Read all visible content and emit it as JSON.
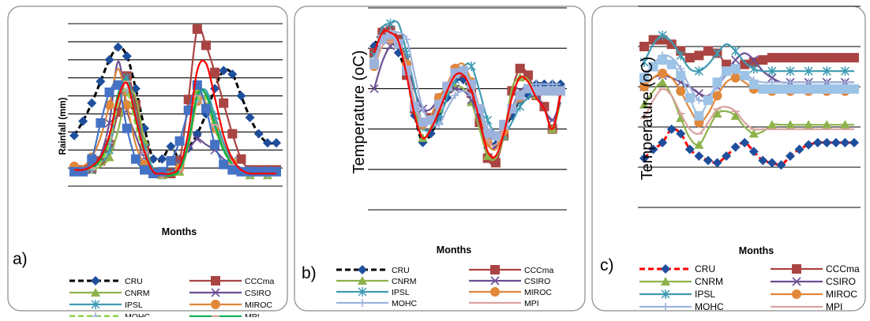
{
  "panels": [
    {
      "letter": "a)",
      "xlabel": "Months",
      "ylabel": "Rainfall (mm)",
      "ylabel_bold": true
    },
    {
      "letter": "b)",
      "xlabel": "Months",
      "ylabel": "Temperature (oC)",
      "ylabel_bold": false
    },
    {
      "letter": "c)",
      "xlabel": "Months",
      "ylabel": "Temperature (oC)",
      "ylabel_bold": false
    }
  ],
  "legend": [
    {
      "name": "CRU",
      "color": "#1f4e9c",
      "marker": "diamond",
      "dash": "dashed"
    },
    {
      "name": "CCCma",
      "color": "#a94442",
      "marker": "square",
      "dash": "solid"
    },
    {
      "name": "CNRM",
      "color": "#8db24a",
      "marker": "triangle",
      "dash": "solid"
    },
    {
      "name": "CSIRO",
      "color": "#6b4f94",
      "marker": "x",
      "dash": "solid"
    },
    {
      "name": "IPSL",
      "color": "#3f9bb3",
      "marker": "asterisk",
      "dash": "solid"
    },
    {
      "name": "MIROC",
      "color": "#e0873a",
      "marker": "circle",
      "dash": "solid"
    },
    {
      "name": "MOHC",
      "color": "#9db3dc",
      "marker": "plus",
      "dash": "solid"
    },
    {
      "name": "MPI",
      "color": "#d9a3a0",
      "marker": "dash",
      "dash": "solid"
    }
  ],
  "legend_overrides": {
    "a": {
      "CRU": {
        "line": "#000000",
        "dash": "dashed"
      },
      "MOHC": {
        "line": "#92d050",
        "dash": "dashed"
      },
      "MPI": {
        "line": "#00b050",
        "dash": "solid"
      }
    },
    "b": {
      "CRU": {
        "line": "#000000",
        "dash": "dashed"
      }
    },
    "c": {
      "CRU": {
        "line": "#ff0000",
        "dash": "dashed"
      }
    }
  },
  "chart_data": [
    {
      "type": "line",
      "panel": "a",
      "x": [
        1,
        2,
        3,
        4,
        5,
        6,
        7,
        8,
        9,
        10,
        11,
        12,
        13,
        14,
        15,
        16,
        17,
        18,
        19,
        20,
        21,
        22,
        23,
        24
      ],
      "xlabel": "Months",
      "ylabel": "Rainfall (mm)",
      "grid": true,
      "ylim": [
        0,
        9
      ],
      "series": [
        {
          "name": "CRU",
          "values": [
            2.8,
            3.6,
            4.6,
            5.8,
            7.0,
            7.7,
            7.2,
            5.4,
            3.2,
            1.5,
            1.5,
            2.2,
            1.5,
            2.1,
            2.9,
            4.0,
            5.4,
            6.4,
            6.2,
            5.0,
            3.8,
            2.9,
            2.4,
            2.4
          ]
        },
        {
          "name": "CCCma",
          "values": [
            0.9,
            0.9,
            1.0,
            1.4,
            2.3,
            4.1,
            6.1,
            4.5,
            2.0,
            0.7,
            0.7,
            0.7,
            1.4,
            4.8,
            8.7,
            7.8,
            6.3,
            4.6,
            2.9,
            1.5,
            0.9,
            0.9,
            0.9,
            0.9
          ]
        },
        {
          "name": "CNRM",
          "values": [
            0.9,
            0.9,
            0.9,
            1.1,
            1.6,
            3.1,
            5.2,
            4.9,
            2.5,
            0.9,
            0.6,
            0.6,
            0.8,
            2.3,
            5.3,
            5.0,
            3.6,
            2.3,
            1.3,
            0.8,
            0.6,
            0.6,
            0.6,
            0.6
          ]
        },
        {
          "name": "CSIRO",
          "values": [
            0.8,
            0.8,
            0.9,
            1.7,
            3.5,
            6.9,
            4.2,
            2.8,
            1.6,
            0.9,
            0.8,
            0.8,
            1.3,
            2.0,
            2.6,
            2.3,
            2.0,
            1.5,
            1.2,
            1.0,
            0.9,
            0.9,
            0.9,
            0.9
          ]
        },
        {
          "name": "IPSL",
          "values": [
            1.0,
            1.0,
            1.1,
            1.3,
            2.0,
            4.8,
            6.0,
            4.0,
            2.1,
            1.0,
            0.8,
            0.8,
            1.1,
            2.5,
            4.9,
            5.3,
            3.9,
            2.4,
            1.4,
            1.0,
            0.8,
            0.8,
            0.8,
            0.8
          ]
        },
        {
          "name": "MIROC",
          "values": [
            1.1,
            1.1,
            1.6,
            2.7,
            4.5,
            6.5,
            4.5,
            2.3,
            1.2,
            0.7,
            0.7,
            0.7,
            1.0,
            2.2,
            4.7,
            4.6,
            3.2,
            2.0,
            1.3,
            0.9,
            0.8,
            0.8,
            0.8,
            0.8
          ]
        },
        {
          "name": "MOHC",
          "values": [
            0.8,
            0.8,
            0.9,
            1.3,
            2.4,
            4.6,
            5.3,
            3.4,
            1.8,
            0.8,
            0.6,
            0.6,
            0.9,
            2.4,
            4.7,
            4.8,
            3.3,
            2.0,
            1.2,
            0.8,
            0.6,
            0.6,
            0.6,
            0.6
          ]
        },
        {
          "name": "MPI",
          "values": [
            0.9,
            0.9,
            1.0,
            1.5,
            2.7,
            5.1,
            5.8,
            3.7,
            1.9,
            0.8,
            0.6,
            0.6,
            0.9,
            2.4,
            5.0,
            5.1,
            3.4,
            2.0,
            1.2,
            0.8,
            0.6,
            0.6,
            0.6,
            0.6
          ]
        },
        {
          "name": "",
          "color": "#4472c4",
          "marker": "square",
          "values": [
            0.8,
            0.8,
            1.5,
            3.5,
            5.2,
            5.6,
            3.2,
            1.5,
            0.9,
            0.7,
            0.8,
            1.4,
            2.5,
            4.2,
            5.6,
            4.3,
            2.3,
            1.2,
            0.9,
            0.8,
            0.8,
            0.8,
            0.8,
            0.8
          ]
        },
        {
          "name": "",
          "color": "#ff0000",
          "marker": "none",
          "values": [
            0.9,
            0.9,
            1.1,
            1.6,
            2.8,
            4.9,
            5.7,
            3.8,
            1.9,
            0.8,
            0.7,
            0.7,
            1.1,
            3.0,
            6.4,
            6.8,
            4.9,
            2.8,
            1.5,
            0.9,
            0.7,
            0.7,
            0.7,
            0.7
          ]
        }
      ]
    },
    {
      "type": "line",
      "panel": "b",
      "x": [
        1,
        2,
        3,
        4,
        5,
        6,
        7,
        8,
        9,
        10,
        11,
        12,
        13,
        14,
        15,
        16,
        17,
        18,
        19,
        20,
        21,
        22,
        23,
        24
      ],
      "xlabel": "Months",
      "ylabel": "Temperature (oC)",
      "grid": true,
      "ylim": [
        0,
        9
      ],
      "series": [
        {
          "name": "CRU",
          "values": [
            7.3,
            8.0,
            7.6,
            7.0,
            6.0,
            4.2,
            3.0,
            3.4,
            4.1,
            5.0,
            5.8,
            5.8,
            5.2,
            4.2,
            3.2,
            2.9,
            3.6,
            4.2,
            4.9,
            5.1,
            5.6,
            5.6,
            5.6,
            5.6
          ]
        },
        {
          "name": "CCCma",
          "values": [
            7.0,
            7.9,
            8.0,
            7.6,
            6.0,
            4.5,
            3.9,
            4.1,
            4.8,
            5.4,
            6.2,
            6.1,
            5.2,
            3.9,
            2.3,
            2.1,
            3.3,
            5.3,
            6.3,
            6.0,
            5.1,
            4.6,
            3.6,
            5.3
          ]
        },
        {
          "name": "CNRM",
          "values": [
            6.6,
            7.3,
            7.6,
            7.4,
            6.2,
            4.5,
            3.2,
            3.7,
            4.5,
            5.2,
            5.5,
            5.4,
            4.8,
            3.6,
            2.4,
            2.3,
            3.3,
            5.4,
            5.9,
            5.8,
            5.1,
            4.5,
            3.6,
            4.8
          ]
        },
        {
          "name": "CSIRO",
          "values": [
            5.4,
            6.6,
            7.3,
            7.4,
            6.7,
            5.3,
            4.5,
            4.5,
            5.0,
            5.4,
            5.4,
            5.3,
            4.9,
            3.9,
            2.9,
            2.8,
            3.6,
            4.5,
            5.3,
            5.4,
            5.2,
            4.5,
            4.0,
            4.8
          ]
        },
        {
          "name": "IPSL",
          "values": [
            6.9,
            8.1,
            8.3,
            8.3,
            7.0,
            5.4,
            3.7,
            3.6,
            4.0,
            5.0,
            5.8,
            6.4,
            6.4,
            5.3,
            4.0,
            3.4,
            3.3,
            3.9,
            4.6,
            5.0,
            5.3,
            5.3,
            5.3,
            5.3
          ]
        },
        {
          "name": "MIROC",
          "values": [
            6.4,
            7.3,
            7.6,
            7.4,
            6.5,
            4.7,
            3.8,
            4.2,
            5.0,
            5.6,
            6.3,
            6.5,
            5.7,
            4.5,
            3.0,
            2.7,
            3.5,
            4.4,
            5.0,
            5.3,
            5.3,
            5.3,
            5.3,
            5.3
          ]
        },
        {
          "name": "MOHC",
          "values": [
            6.7,
            7.6,
            7.9,
            7.9,
            7.6,
            6.0,
            4.5,
            3.9,
            3.8,
            4.5,
            5.1,
            5.3,
            5.1,
            4.6,
            3.6,
            3.4,
            3.7,
            4.5,
            5.1,
            5.5,
            5.6,
            5.6,
            5.6,
            5.6
          ]
        },
        {
          "name": "MPI",
          "values": [
            6.3,
            7.3,
            7.5,
            7.3,
            6.4,
            4.8,
            3.9,
            3.9,
            4.6,
            5.3,
            5.9,
            6.1,
            5.6,
            4.5,
            3.1,
            2.9,
            3.6,
            4.5,
            5.1,
            5.3,
            5.3,
            5.3,
            5.3,
            5.3
          ]
        },
        {
          "name": "",
          "color": "#9db3dc",
          "marker": "square",
          "values": [
            6.5,
            7.6,
            7.8,
            7.4,
            6.2,
            4.6,
            3.9,
            4.0,
            4.7,
            5.5,
            6.1,
            6.2,
            5.6,
            4.5,
            3.4,
            3.3,
            3.8,
            4.5,
            5.1,
            5.4,
            5.3,
            5.3,
            5.3,
            5.3
          ]
        },
        {
          "name": "",
          "color": "#ff0000",
          "marker": "none",
          "values": [
            7.0,
            7.9,
            7.9,
            7.5,
            6.0,
            4.2,
            3.2,
            3.6,
            4.4,
            5.3,
            6.0,
            6.0,
            5.3,
            4.0,
            2.6,
            2.4,
            3.4,
            5.0,
            5.9,
            5.7,
            5.0,
            4.5,
            3.6,
            5.1
          ]
        }
      ]
    },
    {
      "type": "line",
      "panel": "c",
      "x": [
        1,
        2,
        3,
        4,
        5,
        6,
        7,
        8,
        9,
        10,
        11,
        12,
        13,
        14,
        15,
        16,
        17,
        18,
        19,
        20,
        21,
        22,
        23,
        24
      ],
      "xlabel": "Months",
      "ylabel": "Temperature (oC)",
      "grid": true,
      "ylim": [
        0,
        9
      ],
      "series": [
        {
          "name": "CRU",
          "values": [
            2.2,
            2.6,
            2.9,
            3.5,
            3.3,
            2.6,
            2.3,
            2.1,
            2.0,
            2.3,
            2.7,
            2.9,
            2.5,
            2.1,
            2.0,
            1.9,
            2.3,
            2.6,
            2.8,
            2.9,
            2.9,
            2.9,
            2.9,
            2.9
          ]
        },
        {
          "name": "CCCma",
          "values": [
            7.2,
            7.5,
            7.5,
            7.3,
            7.0,
            6.7,
            6.8,
            7.0,
            6.9,
            6.4,
            6.2,
            6.4,
            6.5,
            6.6,
            6.7,
            6.7,
            6.7,
            6.7,
            6.7,
            6.7,
            6.7,
            6.7,
            6.7,
            6.7
          ]
        },
        {
          "name": "CNRM",
          "values": [
            4.6,
            5.2,
            5.6,
            5.0,
            4.0,
            3.1,
            2.8,
            3.5,
            4.2,
            4.3,
            4.1,
            3.6,
            3.3,
            3.4,
            3.7,
            3.7,
            3.7,
            3.7,
            3.7,
            3.7,
            3.7,
            3.7,
            3.7,
            3.7
          ]
        },
        {
          "name": "CSIRO",
          "values": [
            5.4,
            5.8,
            5.9,
            5.8,
            5.6,
            5.4,
            5.1,
            5.0,
            5.4,
            6.0,
            6.6,
            6.9,
            6.6,
            6.1,
            5.8,
            5.6,
            5.6,
            5.6,
            5.6,
            5.6,
            5.6,
            5.6,
            5.6,
            5.6
          ]
        },
        {
          "name": "IPSL",
          "values": [
            6.5,
            7.3,
            7.7,
            7.4,
            6.8,
            6.2,
            6.1,
            6.4,
            6.9,
            7.3,
            7.0,
            6.5,
            6.2,
            6.1,
            6.1,
            6.1,
            6.1,
            6.1,
            6.1,
            6.1,
            6.1,
            6.1,
            6.1,
            6.1
          ]
        },
        {
          "name": "MIROC",
          "values": [
            5.4,
            5.8,
            6.0,
            5.8,
            5.2,
            4.4,
            3.8,
            4.2,
            5.0,
            5.6,
            5.8,
            5.6,
            5.3,
            5.2,
            5.2,
            5.2,
            5.2,
            5.2,
            5.2,
            5.2,
            5.2,
            5.2,
            5.2,
            5.2
          ]
        },
        {
          "name": "MOHC",
          "values": [
            5.9,
            6.4,
            6.8,
            6.7,
            6.2,
            5.4,
            4.8,
            4.9,
            5.4,
            5.9,
            6.1,
            6.0,
            5.7,
            5.6,
            5.6,
            5.6,
            5.6,
            5.6,
            5.6,
            5.6,
            5.6,
            5.6,
            5.6,
            5.6
          ]
        },
        {
          "name": "MPI",
          "values": [
            4.0,
            4.8,
            5.3,
            5.0,
            4.2,
            3.5,
            3.3,
            3.8,
            4.4,
            4.5,
            4.3,
            3.8,
            3.5,
            3.5,
            3.5,
            3.5,
            3.5,
            3.5,
            3.5,
            3.5,
            3.5,
            3.5,
            3.5,
            3.5
          ]
        },
        {
          "name": "",
          "color": "#9dc3e6",
          "marker": "square",
          "values": [
            5.8,
            6.3,
            6.6,
            6.4,
            5.9,
            4.9,
            4.1,
            4.8,
            5.6,
            6.1,
            6.2,
            5.9,
            5.5,
            5.3,
            5.3,
            5.3,
            5.3,
            5.3,
            5.3,
            5.3,
            5.3,
            5.3,
            5.3,
            5.3
          ]
        }
      ]
    }
  ]
}
